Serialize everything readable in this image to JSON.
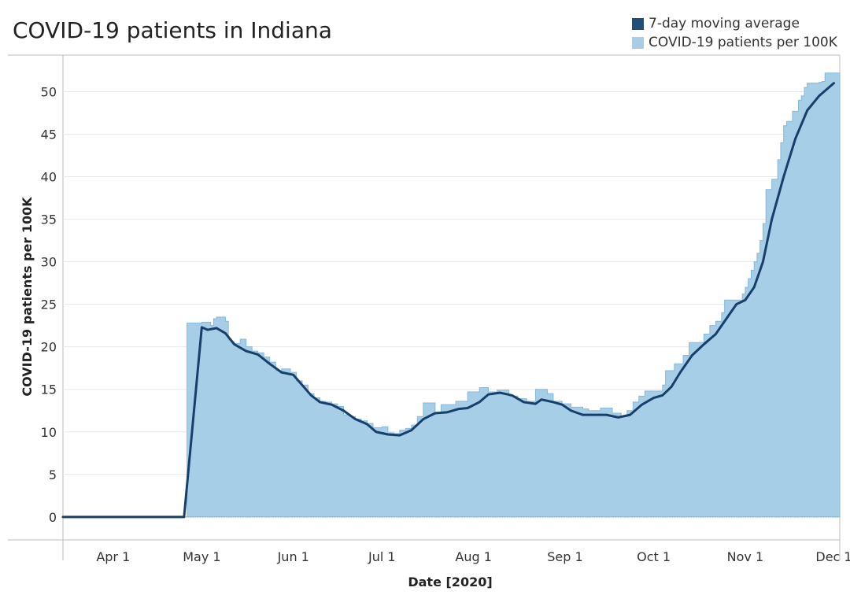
{
  "title": "COVID-19 patients in Indiana",
  "legend": [
    {
      "label": "7-day moving average",
      "color": "#1f4e79"
    },
    {
      "label": "COVID-19 patients per 100K",
      "color": "#a6cee6"
    }
  ],
  "colors": {
    "area": "#a6cee6",
    "area_stroke": "#86b9dc",
    "line": "#173f6b",
    "grid": "#e8e8e8",
    "axis": "#bdbdbd"
  },
  "chart_data": {
    "type": "area",
    "title": "COVID-19 patients in Indiana",
    "xlabel": "Date [2020]",
    "ylabel": "COVID-19 patients per 100K",
    "ylim": [
      -2.7,
      54.3
    ],
    "xlim": [
      "2020-03-15",
      "2020-12-03"
    ],
    "yticks": [
      0,
      5,
      10,
      15,
      20,
      25,
      30,
      35,
      40,
      45,
      50
    ],
    "xticks": [
      {
        "date": "2020-04-01",
        "label": "Apr 1"
      },
      {
        "date": "2020-05-01",
        "label": "May 1"
      },
      {
        "date": "2020-06-01",
        "label": "Jun 1"
      },
      {
        "date": "2020-07-01",
        "label": "Jul 1"
      },
      {
        "date": "2020-08-01",
        "label": "Aug 1"
      },
      {
        "date": "2020-09-01",
        "label": "Sep 1"
      },
      {
        "date": "2020-10-01",
        "label": "Oct 1"
      },
      {
        "date": "2020-11-01",
        "label": "Nov 1"
      },
      {
        "date": "2020-12-01",
        "label": "Dec 1"
      }
    ],
    "grid": true,
    "legend_position": "top-right",
    "series": [
      {
        "name": "COVID-19 patients per 100K",
        "kind": "step-area",
        "points": [
          [
            "2020-03-15",
            0
          ],
          [
            "2020-04-25",
            0
          ],
          [
            "2020-04-26",
            22.8
          ],
          [
            "2020-05-01",
            22.9
          ],
          [
            "2020-05-04",
            22.5
          ],
          [
            "2020-05-05",
            23.3
          ],
          [
            "2020-05-06",
            23.5
          ],
          [
            "2020-05-09",
            23.0
          ],
          [
            "2020-05-10",
            20.8
          ],
          [
            "2020-05-11",
            20.6
          ],
          [
            "2020-05-12",
            20.4
          ],
          [
            "2020-05-14",
            20.9
          ],
          [
            "2020-05-16",
            20.0
          ],
          [
            "2020-05-18",
            19.5
          ],
          [
            "2020-05-20",
            19.3
          ],
          [
            "2020-05-22",
            18.8
          ],
          [
            "2020-05-24",
            18.2
          ],
          [
            "2020-05-26",
            17.2
          ],
          [
            "2020-05-28",
            17.4
          ],
          [
            "2020-05-31",
            17.0
          ],
          [
            "2020-06-02",
            16.0
          ],
          [
            "2020-06-04",
            15.5
          ],
          [
            "2020-06-06",
            14.5
          ],
          [
            "2020-06-08",
            14.0
          ],
          [
            "2020-06-10",
            13.6
          ],
          [
            "2020-06-12",
            13.5
          ],
          [
            "2020-06-14",
            13.3
          ],
          [
            "2020-06-16",
            13.0
          ],
          [
            "2020-06-18",
            12.0
          ],
          [
            "2020-06-20",
            11.8
          ],
          [
            "2020-06-22",
            11.5
          ],
          [
            "2020-06-24",
            11.3
          ],
          [
            "2020-06-26",
            11.0
          ],
          [
            "2020-06-28",
            10.5
          ],
          [
            "2020-07-01",
            10.6
          ],
          [
            "2020-07-03",
            9.9
          ],
          [
            "2020-07-05",
            9.8
          ],
          [
            "2020-07-07",
            10.2
          ],
          [
            "2020-07-09",
            10.4
          ],
          [
            "2020-07-11",
            10.8
          ],
          [
            "2020-07-13",
            11.8
          ],
          [
            "2020-07-15",
            13.4
          ],
          [
            "2020-07-19",
            12.2
          ],
          [
            "2020-07-21",
            13.2
          ],
          [
            "2020-07-26",
            13.6
          ],
          [
            "2020-07-30",
            14.7
          ],
          [
            "2020-08-03",
            15.2
          ],
          [
            "2020-08-06",
            14.7
          ],
          [
            "2020-08-09",
            14.9
          ],
          [
            "2020-08-13",
            14.2
          ],
          [
            "2020-08-16",
            13.9
          ],
          [
            "2020-08-19",
            13.6
          ],
          [
            "2020-08-22",
            15.0
          ],
          [
            "2020-08-26",
            14.5
          ],
          [
            "2020-08-28",
            13.6
          ],
          [
            "2020-08-31",
            13.3
          ],
          [
            "2020-09-03",
            12.9
          ],
          [
            "2020-09-07",
            12.7
          ],
          [
            "2020-09-09",
            12.5
          ],
          [
            "2020-09-13",
            12.8
          ],
          [
            "2020-09-17",
            12.2
          ],
          [
            "2020-09-20",
            11.8
          ],
          [
            "2020-09-22",
            12.5
          ],
          [
            "2020-09-24",
            13.5
          ],
          [
            "2020-09-26",
            14.2
          ],
          [
            "2020-09-28",
            14.8
          ],
          [
            "2020-10-04",
            15.5
          ],
          [
            "2020-10-05",
            17.2
          ],
          [
            "2020-10-08",
            18.0
          ],
          [
            "2020-10-11",
            19.0
          ],
          [
            "2020-10-13",
            20.5
          ],
          [
            "2020-10-18",
            21.5
          ],
          [
            "2020-10-20",
            22.5
          ],
          [
            "2020-10-22",
            23.0
          ],
          [
            "2020-10-24",
            24.0
          ],
          [
            "2020-10-25",
            25.5
          ],
          [
            "2020-10-31",
            26.2
          ],
          [
            "2020-11-01",
            27.0
          ],
          [
            "2020-11-02",
            28.0
          ],
          [
            "2020-11-03",
            29.0
          ],
          [
            "2020-11-04",
            30.0
          ],
          [
            "2020-11-05",
            31.0
          ],
          [
            "2020-11-06",
            32.5
          ],
          [
            "2020-11-07",
            34.5
          ],
          [
            "2020-11-08",
            38.5
          ],
          [
            "2020-11-10",
            39.7
          ],
          [
            "2020-11-12",
            42.0
          ],
          [
            "2020-11-13",
            44.0
          ],
          [
            "2020-11-14",
            46.0
          ],
          [
            "2020-11-15",
            46.5
          ],
          [
            "2020-11-17",
            47.7
          ],
          [
            "2020-11-19",
            49.0
          ],
          [
            "2020-11-20",
            49.5
          ],
          [
            "2020-11-21",
            50.5
          ],
          [
            "2020-11-22",
            51.0
          ],
          [
            "2020-11-26",
            51.1
          ],
          [
            "2020-11-27",
            51.2
          ],
          [
            "2020-11-28",
            52.2
          ]
        ]
      },
      {
        "name": "7-day moving average",
        "kind": "line",
        "points": [
          [
            "2020-03-15",
            0
          ],
          [
            "2020-04-25",
            0
          ],
          [
            "2020-05-01",
            22.3
          ],
          [
            "2020-05-03",
            22.0
          ],
          [
            "2020-05-06",
            22.2
          ],
          [
            "2020-05-09",
            21.6
          ],
          [
            "2020-05-12",
            20.3
          ],
          [
            "2020-05-16",
            19.5
          ],
          [
            "2020-05-20",
            19.1
          ],
          [
            "2020-05-24",
            18.0
          ],
          [
            "2020-05-28",
            17.0
          ],
          [
            "2020-06-01",
            16.7
          ],
          [
            "2020-06-04",
            15.5
          ],
          [
            "2020-06-07",
            14.3
          ],
          [
            "2020-06-10",
            13.5
          ],
          [
            "2020-06-14",
            13.2
          ],
          [
            "2020-06-18",
            12.5
          ],
          [
            "2020-06-22",
            11.5
          ],
          [
            "2020-06-26",
            10.9
          ],
          [
            "2020-06-29",
            10.0
          ],
          [
            "2020-07-03",
            9.7
          ],
          [
            "2020-07-07",
            9.6
          ],
          [
            "2020-07-11",
            10.2
          ],
          [
            "2020-07-15",
            11.5
          ],
          [
            "2020-07-19",
            12.2
          ],
          [
            "2020-07-23",
            12.3
          ],
          [
            "2020-07-27",
            12.7
          ],
          [
            "2020-07-30",
            12.8
          ],
          [
            "2020-08-03",
            13.5
          ],
          [
            "2020-08-06",
            14.4
          ],
          [
            "2020-08-10",
            14.6
          ],
          [
            "2020-08-14",
            14.3
          ],
          [
            "2020-08-18",
            13.5
          ],
          [
            "2020-08-22",
            13.3
          ],
          [
            "2020-08-24",
            13.8
          ],
          [
            "2020-08-28",
            13.5
          ],
          [
            "2020-08-31",
            13.2
          ],
          [
            "2020-09-03",
            12.5
          ],
          [
            "2020-09-07",
            12.0
          ],
          [
            "2020-09-11",
            12.0
          ],
          [
            "2020-09-15",
            12.0
          ],
          [
            "2020-09-19",
            11.7
          ],
          [
            "2020-09-23",
            12.0
          ],
          [
            "2020-09-27",
            13.2
          ],
          [
            "2020-10-01",
            14.0
          ],
          [
            "2020-10-04",
            14.3
          ],
          [
            "2020-10-07",
            15.3
          ],
          [
            "2020-10-10",
            17.0
          ],
          [
            "2020-10-14",
            19.0
          ],
          [
            "2020-10-18",
            20.3
          ],
          [
            "2020-10-22",
            21.5
          ],
          [
            "2020-10-26",
            23.5
          ],
          [
            "2020-10-29",
            25.0
          ],
          [
            "2020-11-01",
            25.5
          ],
          [
            "2020-11-04",
            27.0
          ],
          [
            "2020-11-07",
            30.0
          ],
          [
            "2020-11-10",
            35.0
          ],
          [
            "2020-11-14",
            40.0
          ],
          [
            "2020-11-18",
            44.5
          ],
          [
            "2020-11-22",
            47.8
          ],
          [
            "2020-11-26",
            49.5
          ],
          [
            "2020-12-01",
            51.0
          ]
        ]
      }
    ]
  }
}
